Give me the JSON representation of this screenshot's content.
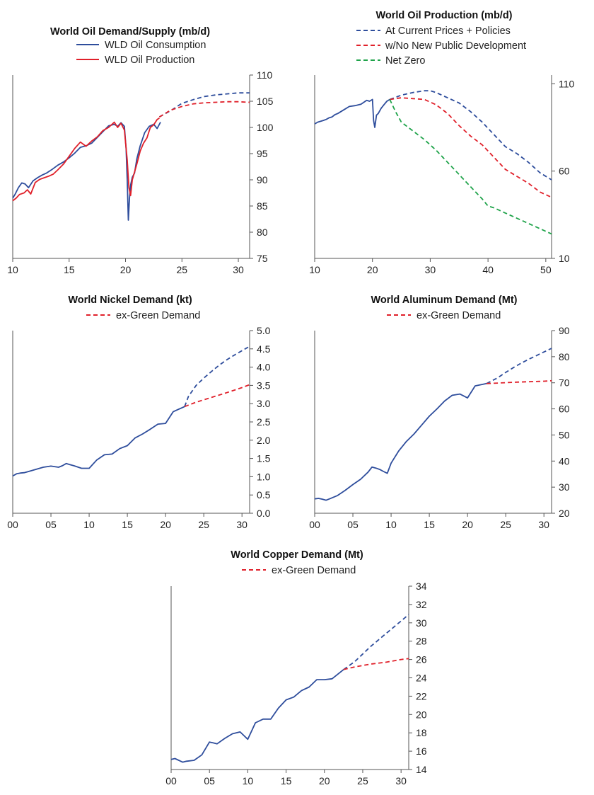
{
  "colors": {
    "blue": "#2e4d9c",
    "red": "#e0202a",
    "green": "#1fa34a",
    "axis": "#555555"
  },
  "chart_data": [
    {
      "id": "oil-demand-supply",
      "type": "line",
      "title": "World Oil Demand/Supply (mb/d)",
      "xlabel": "",
      "ylabel": "",
      "xlim": [
        10,
        31
      ],
      "ylim": [
        75,
        110
      ],
      "xticks": [
        10,
        15,
        20,
        25,
        30
      ],
      "xtick_labels": [
        "10",
        "15",
        "20",
        "25",
        "30"
      ],
      "yticks": [
        75,
        80,
        85,
        90,
        95,
        100,
        105,
        110
      ],
      "ytick_labels": [
        "75",
        "80",
        "85",
        "90",
        "95",
        "100",
        "105",
        "110"
      ],
      "legend": [
        {
          "label": "WLD Oil Consumption",
          "color": "blue",
          "dashed": false
        },
        {
          "label": "WLD Oil Production",
          "color": "red",
          "dashed": false
        }
      ],
      "series": [
        {
          "name": "WLD Oil Consumption (history)",
          "color": "blue",
          "dashed": false,
          "x": [
            10,
            10.2,
            10.5,
            10.8,
            11.1,
            11.4,
            11.8,
            12.2,
            12.6,
            13,
            13.5,
            14,
            14.5,
            15,
            15.5,
            16,
            16.5,
            17,
            17.5,
            18,
            18.5,
            19,
            19.3,
            19.6,
            19.9,
            20.05,
            20.15,
            20.25,
            20.35,
            20.45,
            20.6,
            20.8,
            21,
            21.3,
            21.7,
            22.1,
            22.5,
            22.8,
            23.1
          ],
          "values": [
            86.5,
            87.2,
            88.5,
            89.4,
            89.2,
            88.5,
            89.8,
            90.4,
            90.9,
            91.3,
            92.0,
            92.8,
            93.4,
            94.2,
            95.1,
            96.2,
            96.5,
            97.0,
            98.1,
            99.2,
            100.3,
            100.6,
            100.2,
            100.9,
            100.2,
            96.0,
            90.0,
            82.3,
            86.5,
            89.0,
            90.5,
            91.3,
            94.0,
            96.5,
            99.0,
            100.2,
            100.6,
            99.8,
            101.0
          ]
        },
        {
          "name": "WLD Oil Production (history)",
          "color": "red",
          "dashed": false,
          "x": [
            10,
            10.3,
            10.6,
            11,
            11.3,
            11.6,
            12,
            12.4,
            12.8,
            13.2,
            13.6,
            14,
            14.5,
            15,
            15.5,
            16,
            16.5,
            17,
            17.5,
            18,
            18.5,
            19,
            19.3,
            19.6,
            19.9,
            20.15,
            20.3,
            20.45,
            20.6,
            20.8,
            21,
            21.3,
            21.6,
            21.9,
            22.2,
            22.5,
            22.8,
            23
          ],
          "values": [
            86.0,
            86.5,
            87.2,
            87.5,
            88.1,
            87.3,
            89.5,
            90.1,
            90.4,
            90.7,
            91.1,
            91.9,
            93.0,
            94.5,
            96.0,
            97.2,
            96.4,
            97.4,
            98.2,
            99.4,
            100.0,
            101.0,
            100.0,
            100.8,
            99.5,
            93.8,
            88.5,
            87.0,
            90.0,
            91.5,
            93.0,
            95.5,
            97.0,
            98.0,
            100.0,
            100.5,
            101.5,
            101.8
          ]
        },
        {
          "name": "WLD Oil Consumption (forecast)",
          "color": "blue",
          "dashed": true,
          "x": [
            23,
            24,
            25,
            26,
            27,
            28,
            29,
            30,
            31
          ],
          "values": [
            102.0,
            103.2,
            104.6,
            105.3,
            105.9,
            106.2,
            106.4,
            106.6,
            106.6
          ]
        },
        {
          "name": "WLD Oil Production (forecast)",
          "color": "red",
          "dashed": true,
          "x": [
            23,
            24,
            25,
            26,
            27,
            28,
            29,
            30,
            31
          ],
          "values": [
            102.0,
            103.3,
            104.0,
            104.5,
            104.7,
            104.8,
            104.9,
            104.9,
            104.8
          ]
        }
      ]
    },
    {
      "id": "oil-production",
      "type": "line",
      "title": "World Oil Production (mb/d)",
      "xlabel": "",
      "ylabel": "",
      "xlim": [
        10,
        51
      ],
      "ylim": [
        10,
        115
      ],
      "xticks": [
        10,
        20,
        30,
        40,
        50
      ],
      "xtick_labels": [
        "10",
        "20",
        "30",
        "40",
        "50"
      ],
      "yticks": [
        10,
        60,
        110
      ],
      "ytick_labels": [
        "10",
        "60",
        "110"
      ],
      "legend": [
        {
          "label": "At Current Prices + Policies",
          "color": "blue",
          "dashed": true
        },
        {
          "label": "w/No New Public Development",
          "color": "red",
          "dashed": true
        },
        {
          "label": "Net Zero",
          "color": "green",
          "dashed": true
        }
      ],
      "series": [
        {
          "name": "History",
          "color": "blue",
          "dashed": false,
          "x": [
            10,
            10.5,
            11,
            11.5,
            12,
            12.5,
            13,
            13.5,
            14,
            15,
            16,
            17,
            18,
            19,
            19.5,
            20,
            20.2,
            20.4,
            20.7,
            21,
            21.5,
            22,
            22.5,
            23
          ],
          "values": [
            87,
            88,
            88.5,
            89,
            89.6,
            90.5,
            91,
            92.3,
            93,
            95,
            97,
            97.5,
            98.3,
            100.5,
            100,
            101,
            89,
            85,
            92,
            93,
            96,
            98,
            100,
            101
          ]
        },
        {
          "name": "At Current Prices + Policies",
          "color": "blue",
          "dashed": true,
          "x": [
            23,
            25,
            27,
            29,
            30,
            31,
            33,
            35,
            37,
            39,
            41,
            43,
            45,
            47,
            49,
            51
          ],
          "values": [
            101,
            103.5,
            105,
            106,
            106,
            105,
            102,
            99,
            94,
            88,
            81,
            74,
            70,
            65,
            59,
            55
          ]
        },
        {
          "name": "w/No New Public Development",
          "color": "red",
          "dashed": true,
          "x": [
            23,
            25,
            27,
            29,
            31,
            33,
            35,
            37,
            39,
            41,
            43,
            45,
            47,
            49,
            51
          ],
          "values": [
            101,
            102,
            101.5,
            101,
            98,
            93,
            86,
            80,
            75,
            68,
            61,
            57,
            53,
            48,
            45
          ]
        },
        {
          "name": "Net Zero",
          "color": "green",
          "dashed": true,
          "x": [
            23,
            24,
            25,
            27,
            29,
            31,
            33,
            35,
            37,
            39,
            40,
            41,
            43,
            45,
            47,
            49,
            51
          ],
          "values": [
            101,
            94,
            88,
            83,
            78,
            72,
            65,
            58,
            51,
            44,
            40,
            39,
            36,
            33,
            30,
            27,
            24
          ]
        }
      ]
    },
    {
      "id": "nickel-demand",
      "type": "line",
      "title": "World Nickel Demand (kt)",
      "xlabel": "",
      "ylabel": "",
      "xlim": [
        0,
        31
      ],
      "ylim": [
        0,
        5.0
      ],
      "xticks": [
        0,
        5,
        10,
        15,
        20,
        25,
        30
      ],
      "xtick_labels": [
        "00",
        "05",
        "10",
        "15",
        "20",
        "25",
        "30"
      ],
      "yticks": [
        0,
        0.5,
        1.0,
        1.5,
        2.0,
        2.5,
        3.0,
        3.5,
        4.0,
        4.5,
        5.0
      ],
      "ytick_labels": [
        "0.0",
        "0.5",
        "1.0",
        "1.5",
        "2.0",
        "2.5",
        "3.0",
        "3.5",
        "4.0",
        "4.5",
        "5.0"
      ],
      "legend": [
        {
          "label": "ex-Green Demand",
          "color": "red",
          "dashed": true
        }
      ],
      "series": [
        {
          "name": "Demand (history)",
          "color": "blue",
          "dashed": false,
          "x": [
            0,
            0.5,
            1,
            1.5,
            2,
            3,
            4,
            5,
            6,
            6.5,
            7,
            7.5,
            8,
            9,
            10,
            11,
            12,
            13,
            14,
            15,
            16,
            17,
            18,
            19,
            20,
            21,
            22.5
          ],
          "values": [
            1.02,
            1.08,
            1.1,
            1.11,
            1.14,
            1.2,
            1.26,
            1.29,
            1.26,
            1.3,
            1.36,
            1.33,
            1.3,
            1.23,
            1.23,
            1.46,
            1.6,
            1.62,
            1.77,
            1.85,
            2.06,
            2.17,
            2.3,
            2.44,
            2.46,
            2.78,
            2.92
          ]
        },
        {
          "name": "Demand (forecast)",
          "color": "blue",
          "dashed": true,
          "x": [
            22.5,
            23,
            24,
            25,
            26,
            27,
            28,
            29,
            30,
            31
          ],
          "values": [
            2.92,
            3.2,
            3.5,
            3.7,
            3.88,
            4.05,
            4.2,
            4.33,
            4.45,
            4.57
          ]
        },
        {
          "name": "ex-Green Demand",
          "color": "red",
          "dashed": true,
          "x": [
            22.5,
            24,
            26,
            28,
            30,
            31
          ],
          "values": [
            2.92,
            3.04,
            3.17,
            3.3,
            3.44,
            3.52
          ]
        }
      ]
    },
    {
      "id": "aluminum-demand",
      "type": "line",
      "title": "World Aluminum Demand (Mt)",
      "xlabel": "",
      "ylabel": "",
      "xlim": [
        0,
        31
      ],
      "ylim": [
        20,
        90
      ],
      "xticks": [
        0,
        5,
        10,
        15,
        20,
        25,
        30
      ],
      "xtick_labels": [
        "00",
        "05",
        "10",
        "15",
        "20",
        "25",
        "30"
      ],
      "yticks": [
        20,
        30,
        40,
        50,
        60,
        70,
        80,
        90
      ],
      "ytick_labels": [
        "20",
        "30",
        "40",
        "50",
        "60",
        "70",
        "80",
        "90"
      ],
      "legend": [
        {
          "label": "ex-Green Demand",
          "color": "red",
          "dashed": true
        }
      ],
      "series": [
        {
          "name": "Demand (history)",
          "color": "blue",
          "dashed": false,
          "x": [
            0,
            0.5,
            1,
            1.5,
            2,
            3,
            4,
            5,
            6,
            7,
            7.5,
            8,
            8.5,
            9,
            9.5,
            10,
            11,
            12,
            13,
            14,
            15,
            16,
            17,
            18,
            19,
            20,
            21,
            22,
            22.5
          ],
          "values": [
            25.5,
            25.7,
            25.4,
            25.0,
            25.6,
            26.8,
            28.8,
            31.0,
            33.0,
            35.8,
            37.7,
            37.3,
            36.8,
            36.0,
            35.3,
            39.2,
            43.9,
            47.5,
            50.4,
            53.8,
            57.2,
            60.0,
            63.0,
            65.2,
            65.7,
            64.2,
            68.8,
            69.4,
            69.7
          ]
        },
        {
          "name": "Demand (forecast)",
          "color": "blue",
          "dashed": true,
          "x": [
            22.5,
            24,
            25,
            26,
            27,
            28,
            29,
            30,
            31
          ],
          "values": [
            69.7,
            72.0,
            74.0,
            75.8,
            77.5,
            79.0,
            80.4,
            81.8,
            83.2
          ]
        },
        {
          "name": "ex-Green Demand",
          "color": "red",
          "dashed": true,
          "x": [
            22.5,
            24,
            26,
            28,
            30,
            31
          ],
          "values": [
            69.7,
            69.9,
            70.2,
            70.4,
            70.6,
            70.8
          ]
        }
      ]
    },
    {
      "id": "copper-demand",
      "type": "line",
      "title": "World Copper Demand (Mt)",
      "xlabel": "",
      "ylabel": "",
      "xlim": [
        0,
        31
      ],
      "ylim": [
        14,
        34
      ],
      "xticks": [
        0,
        5,
        10,
        15,
        20,
        25,
        30
      ],
      "xtick_labels": [
        "00",
        "05",
        "10",
        "15",
        "20",
        "25",
        "30"
      ],
      "yticks": [
        14,
        16,
        18,
        20,
        22,
        24,
        26,
        28,
        30,
        32,
        34
      ],
      "ytick_labels": [
        "14",
        "16",
        "18",
        "20",
        "22",
        "24",
        "26",
        "28",
        "30",
        "32",
        "34"
      ],
      "legend": [
        {
          "label": "ex-Green Demand",
          "color": "red",
          "dashed": true
        }
      ],
      "series": [
        {
          "name": "Demand (history)",
          "color": "blue",
          "dashed": false,
          "x": [
            0,
            0.5,
            1,
            1.5,
            2,
            3,
            4,
            5,
            5.5,
            6,
            7,
            8,
            9,
            9.5,
            10,
            11,
            12,
            13,
            14,
            15,
            16,
            17,
            18,
            19,
            20,
            21,
            22.5
          ],
          "values": [
            15.1,
            15.2,
            15.0,
            14.8,
            14.9,
            15.0,
            15.6,
            17.0,
            16.9,
            16.8,
            17.4,
            17.9,
            18.1,
            17.7,
            17.3,
            19.1,
            19.5,
            19.5,
            20.7,
            21.6,
            21.9,
            22.6,
            23.0,
            23.8,
            23.8,
            23.9,
            24.9
          ]
        },
        {
          "name": "Demand (forecast)",
          "color": "blue",
          "dashed": true,
          "x": [
            22.5,
            24,
            25,
            26,
            27,
            28,
            29,
            30,
            31
          ],
          "values": [
            24.9,
            25.8,
            26.6,
            27.4,
            28.1,
            28.8,
            29.5,
            30.2,
            30.9
          ]
        },
        {
          "name": "ex-Green Demand",
          "color": "red",
          "dashed": true,
          "x": [
            22.5,
            24,
            26,
            28,
            30,
            31
          ],
          "values": [
            24.9,
            25.2,
            25.5,
            25.7,
            26.0,
            26.1
          ]
        }
      ]
    }
  ]
}
